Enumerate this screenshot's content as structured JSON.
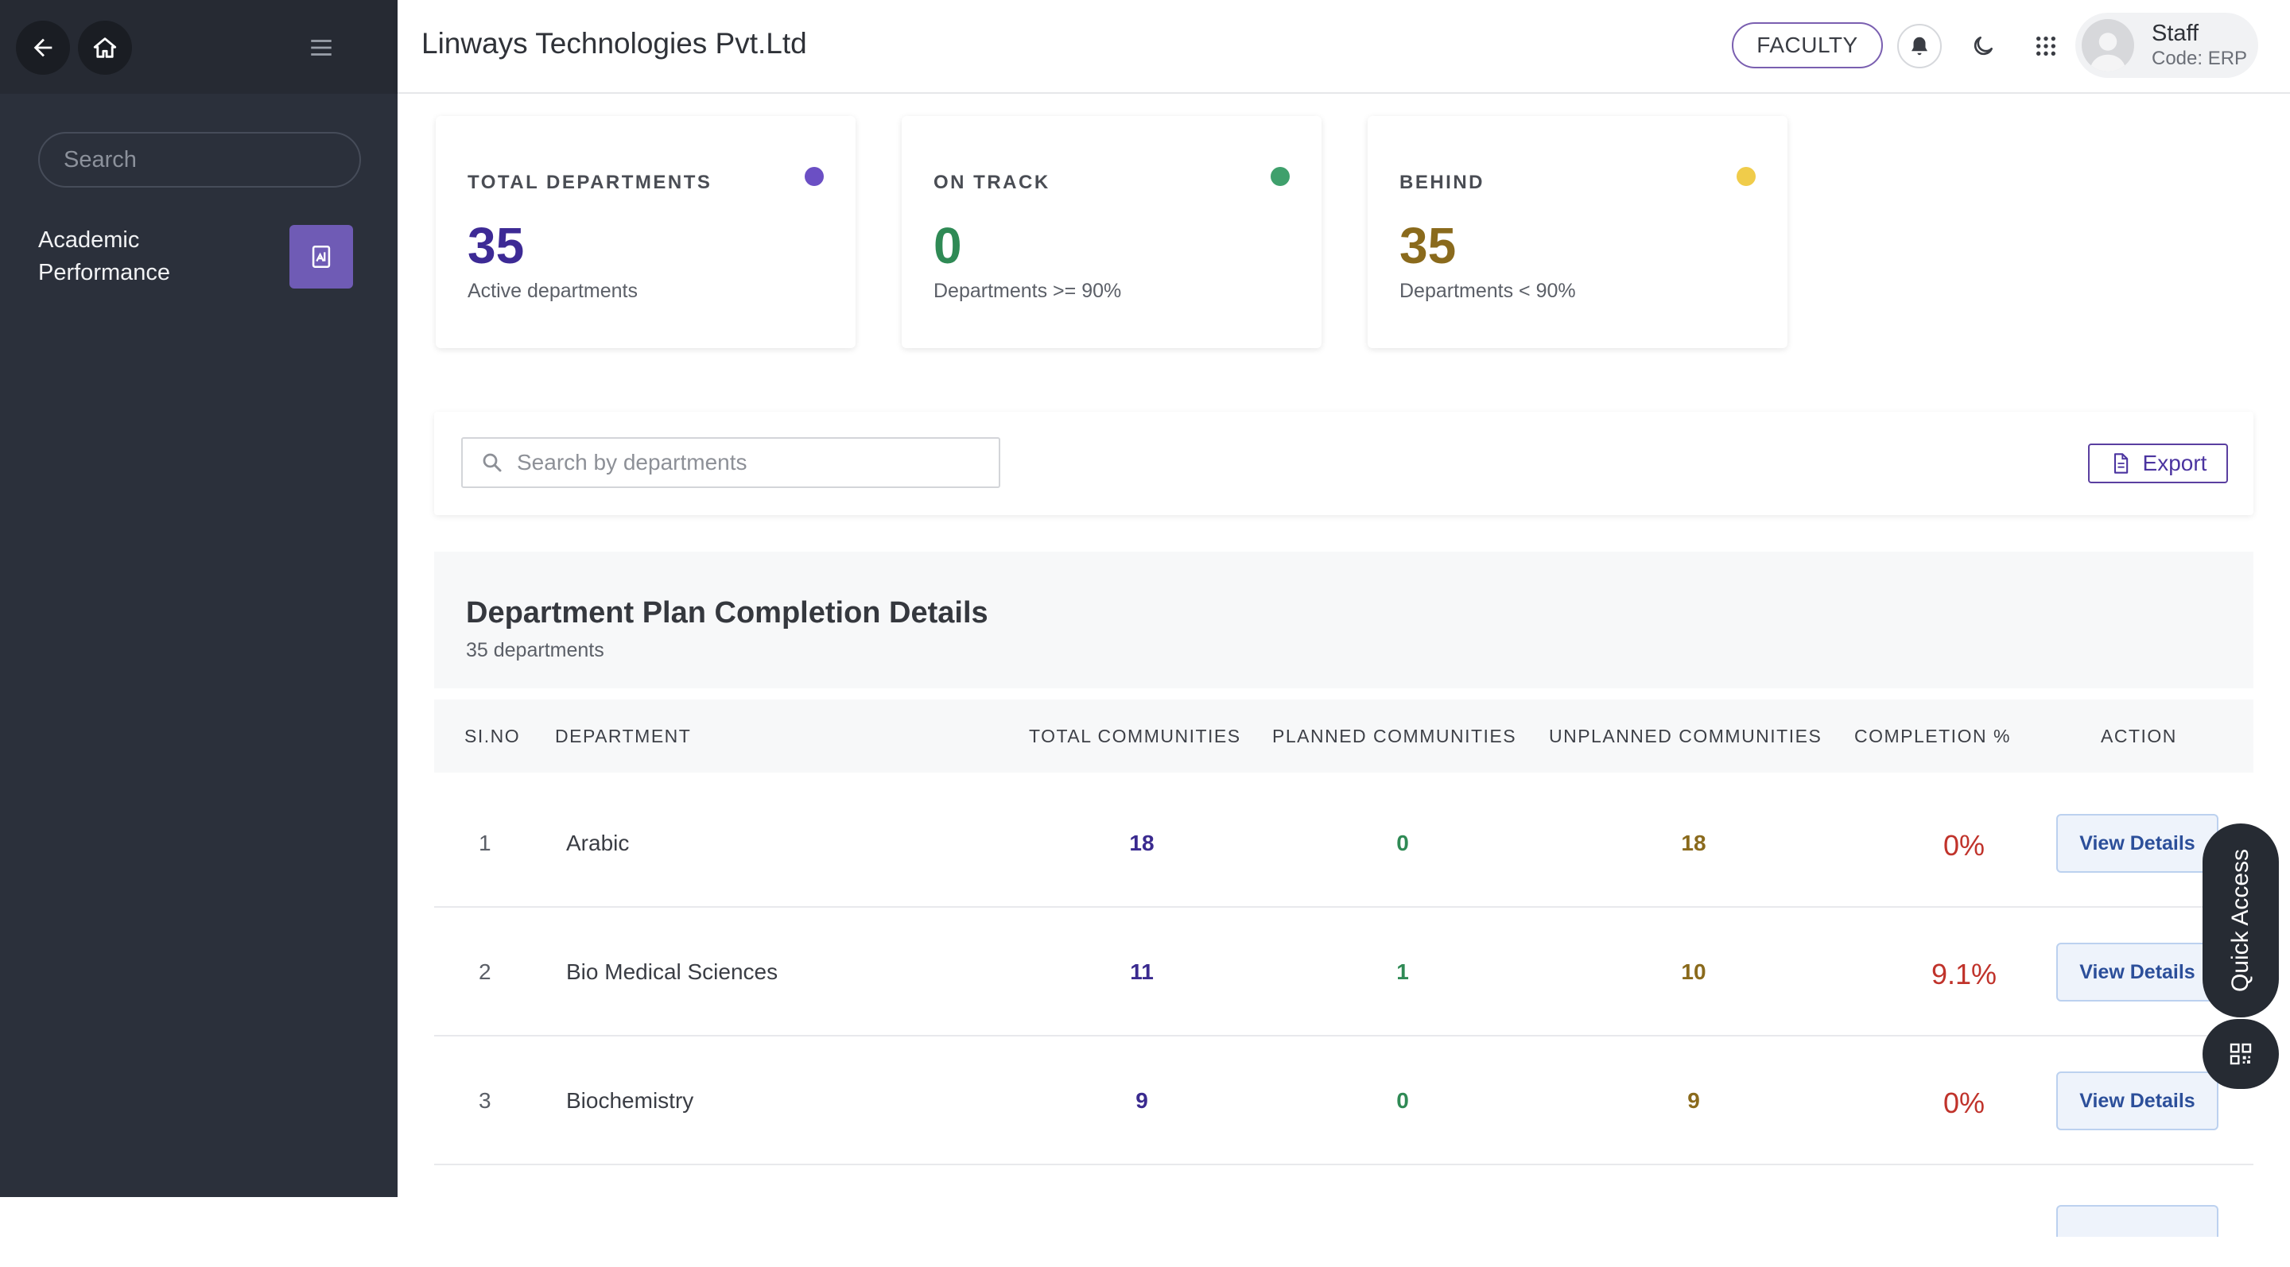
{
  "sidebar": {
    "search_placeholder": "Search",
    "item_label": "Academic Performance"
  },
  "header": {
    "title": "Linways Technologies Pvt.Ltd",
    "role_badge": "FACULTY",
    "user_name": "Staff",
    "user_code": "Code: ERP"
  },
  "stats": [
    {
      "label": "TOTAL DEPARTMENTS",
      "value": "35",
      "sub": "Active departments",
      "color": "#3d2a95",
      "dot": "#6b4fc4"
    },
    {
      "label": "ON TRACK",
      "value": "0",
      "sub": "Departments >= 90%",
      "color": "#2f8a55",
      "dot": "#3fa06c"
    },
    {
      "label": "BEHIND",
      "value": "35",
      "sub": "Departments < 90%",
      "color": "#8a6a1c",
      "dot": "#f0cc4a"
    }
  ],
  "toolbar": {
    "search_placeholder": "Search by departments",
    "export_label": "Export"
  },
  "table": {
    "title": "Department Plan Completion Details",
    "subtitle": "35 departments",
    "columns": [
      "SI.NO",
      "DEPARTMENT",
      "TOTAL COMMUNITIES",
      "PLANNED COMMUNITIES",
      "UNPLANNED COMMUNITIES",
      "COMPLETION %",
      "ACTION"
    ],
    "rows": [
      {
        "no": "1",
        "dept": "Arabic",
        "total": "18",
        "planned": "0",
        "unplanned": "18",
        "pct": "0%",
        "action": "View Details"
      },
      {
        "no": "2",
        "dept": "Bio Medical Sciences",
        "total": "11",
        "planned": "1",
        "unplanned": "10",
        "pct": "9.1%",
        "action": "View Details"
      },
      {
        "no": "3",
        "dept": "Biochemistry",
        "total": "9",
        "planned": "0",
        "unplanned": "9",
        "pct": "0%",
        "action": "View Details"
      }
    ]
  },
  "quick_access": "Quick Access"
}
